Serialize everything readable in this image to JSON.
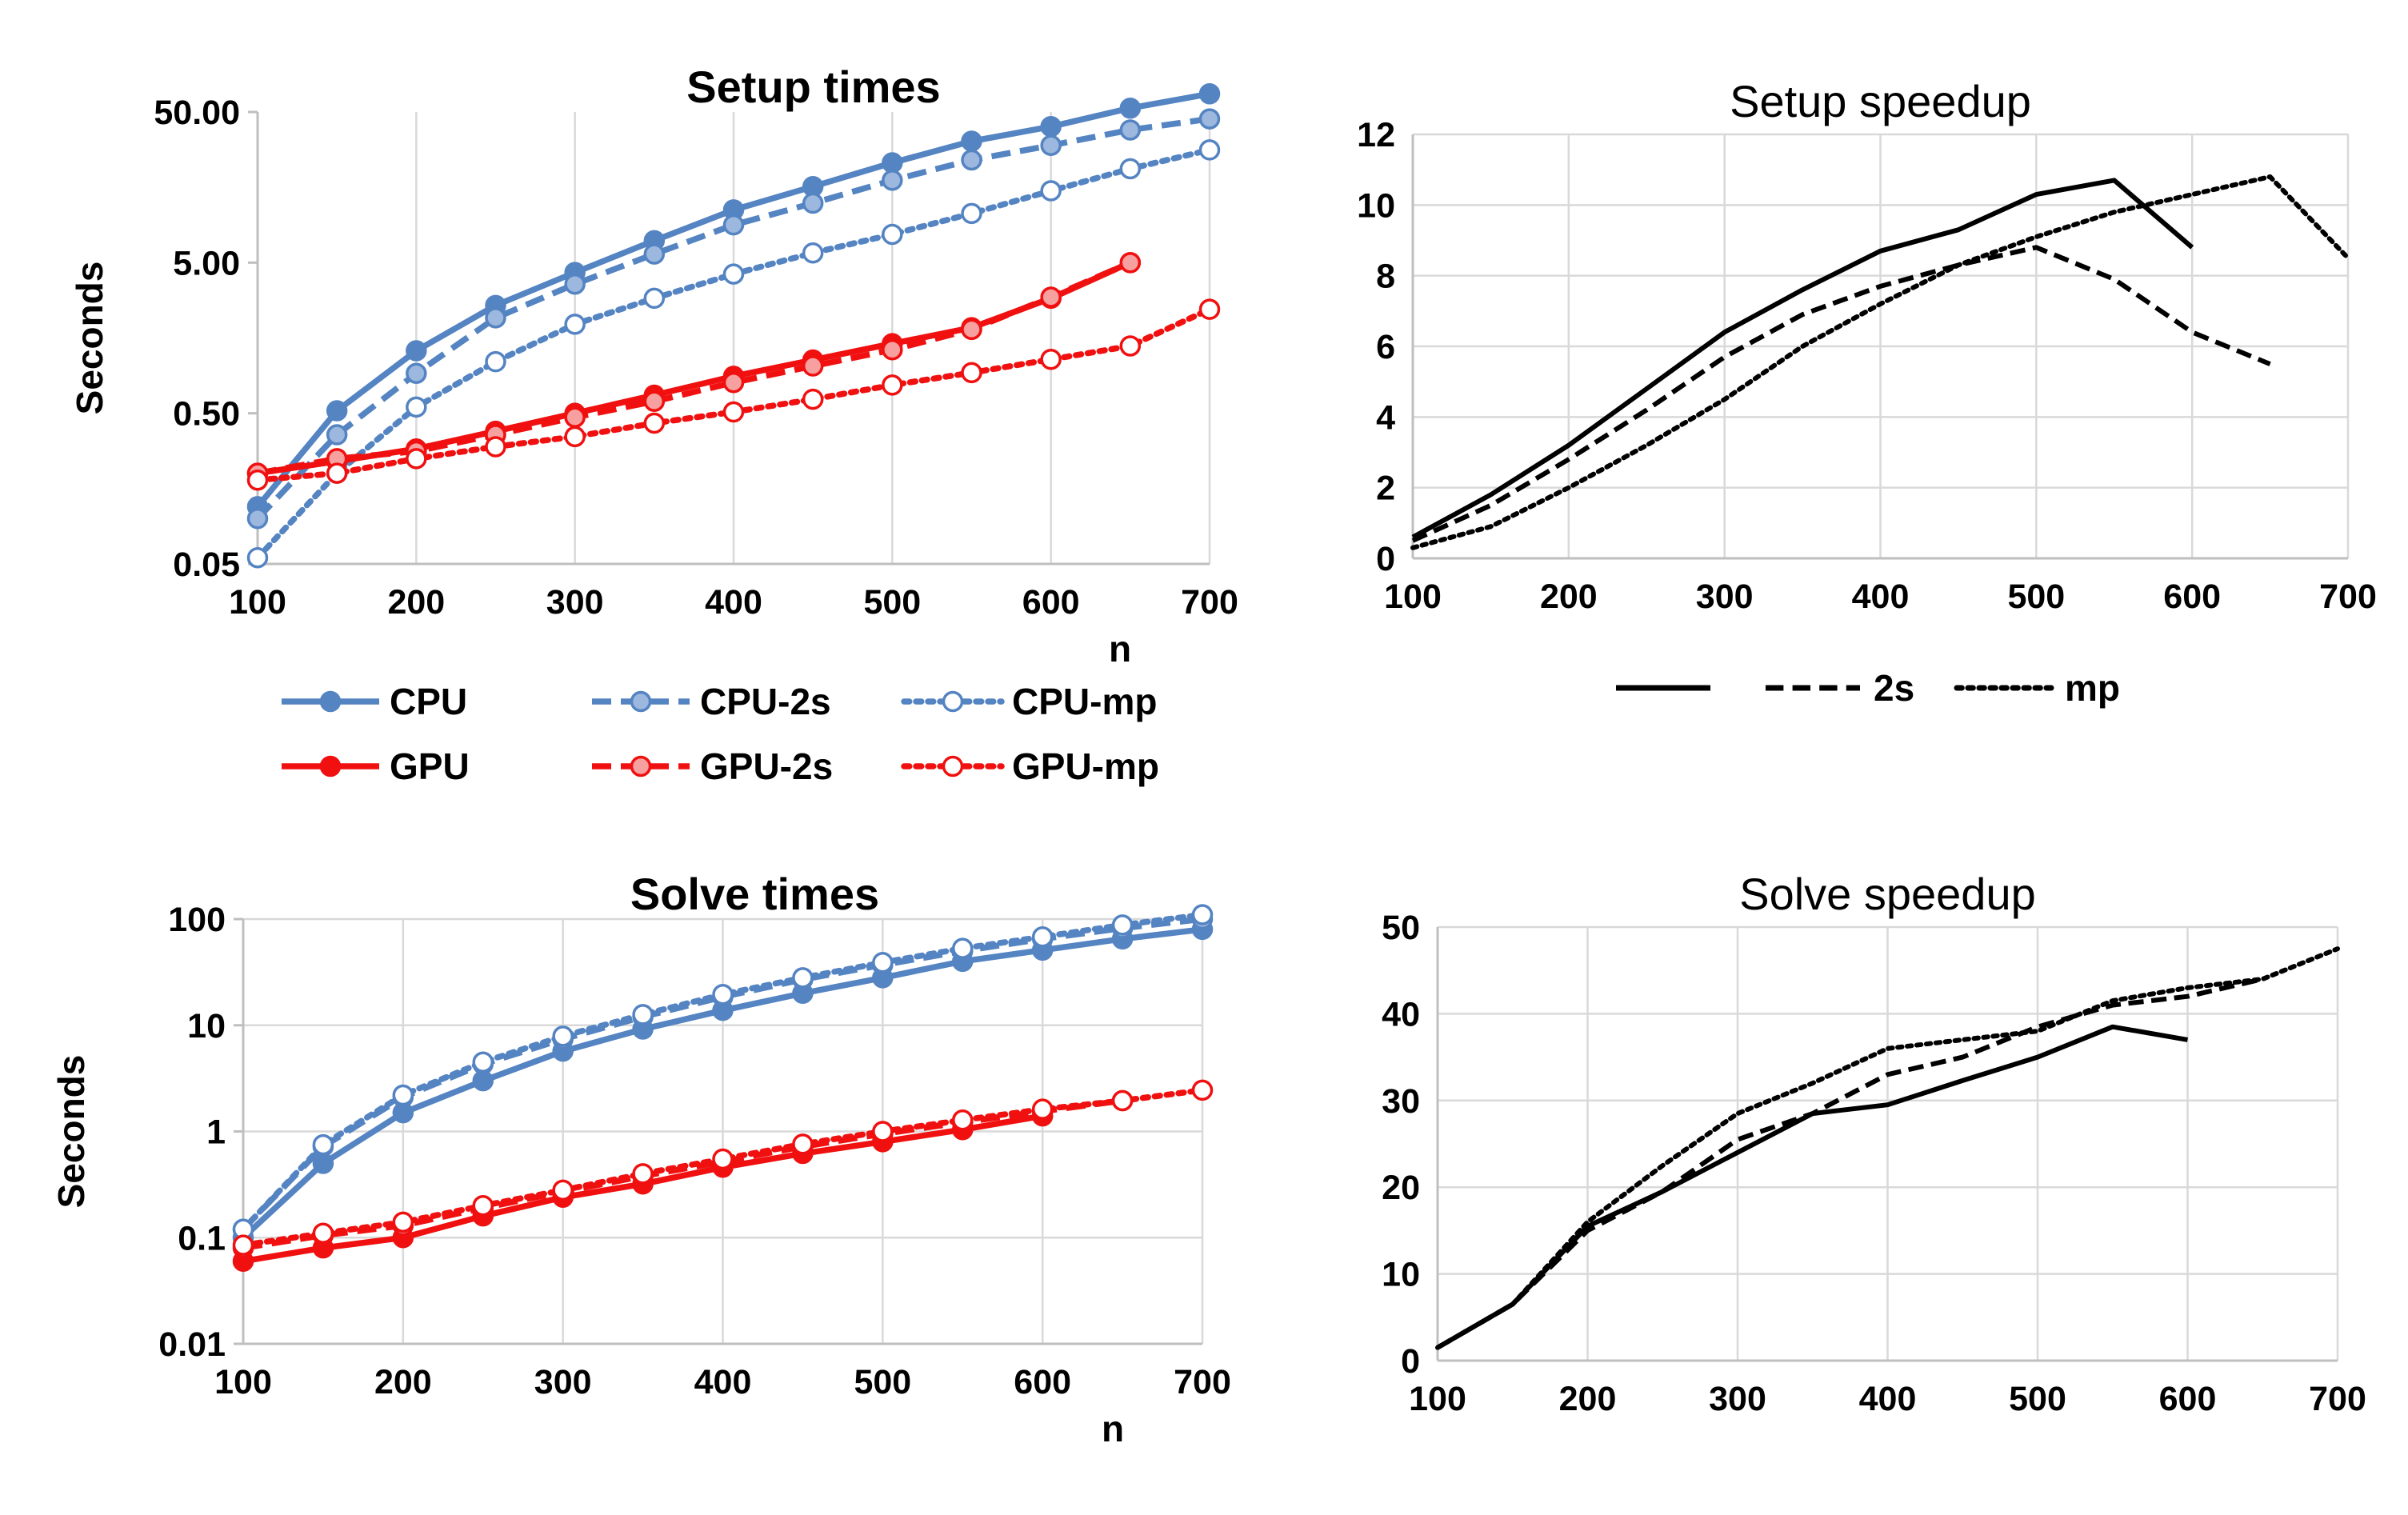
{
  "chart_data": [
    {
      "type": "line",
      "title": "Setup times",
      "xlabel": "n",
      "ylabel": "Seconds",
      "yscale": "log",
      "ylim": [
        0.05,
        50
      ],
      "xlim": [
        100,
        700
      ],
      "yticks": [
        "0.05",
        "0.50",
        "5.00",
        "50.00"
      ],
      "xticks": [
        "100",
        "200",
        "300",
        "400",
        "500",
        "600",
        "700"
      ],
      "grid": "vertical",
      "legend_position": "bottom",
      "series": [
        {
          "name": "CPU",
          "color": "#5584c2",
          "style": "solid",
          "marker": "filled",
          "x": [
            100,
            150,
            200,
            250,
            300,
            350,
            400,
            450,
            500,
            550,
            600,
            650,
            700
          ],
          "values": [
            0.12,
            0.52,
            1.3,
            2.6,
            4.3,
            7.0,
            11.2,
            16,
            23,
            32,
            40,
            53,
            66
          ]
        },
        {
          "name": "CPU-2s",
          "color": "#5584c2",
          "style": "dashed",
          "marker": "light",
          "x": [
            100,
            150,
            200,
            250,
            300,
            350,
            400,
            450,
            500,
            550,
            600,
            650,
            700
          ],
          "values": [
            0.1,
            0.36,
            0.92,
            2.15,
            3.6,
            5.7,
            8.9,
            12.4,
            17.6,
            24,
            30,
            38,
            45
          ]
        },
        {
          "name": "CPU-mp",
          "color": "#5584c2",
          "style": "dotted",
          "marker": "open",
          "x": [
            100,
            150,
            200,
            250,
            300,
            350,
            400,
            450,
            500,
            550,
            600,
            650,
            700
          ],
          "values": [
            0.055,
            0.2,
            0.55,
            1.1,
            1.95,
            2.9,
            4.2,
            5.8,
            7.7,
            10.6,
            15,
            21,
            28
          ]
        },
        {
          "name": "GPU",
          "color": "#f01010",
          "style": "solid",
          "marker": "filled",
          "x": [
            100,
            150,
            200,
            250,
            300,
            350,
            400,
            450,
            500,
            550,
            600,
            650
          ],
          "values": [
            0.2,
            0.24,
            0.29,
            0.38,
            0.5,
            0.66,
            0.88,
            1.13,
            1.45,
            1.85,
            2.9,
            5.0
          ]
        },
        {
          "name": "GPU-2s",
          "color": "#f01010",
          "style": "dashed",
          "marker": "light",
          "x": [
            100,
            150,
            200,
            250,
            300,
            350,
            400,
            450,
            500,
            550,
            600,
            650
          ],
          "values": [
            0.2,
            0.25,
            0.28,
            0.36,
            0.47,
            0.6,
            0.8,
            1.03,
            1.32,
            1.8,
            2.95,
            5.0
          ]
        },
        {
          "name": "GPU-mp",
          "color": "#f01010",
          "style": "dotted",
          "marker": "open",
          "x": [
            100,
            150,
            200,
            250,
            300,
            350,
            400,
            450,
            500,
            550,
            600,
            650,
            700
          ],
          "values": [
            0.18,
            0.2,
            0.25,
            0.3,
            0.35,
            0.43,
            0.51,
            0.62,
            0.77,
            0.93,
            1.14,
            1.4,
            2.45
          ]
        }
      ]
    },
    {
      "type": "line",
      "title": "Setup speedup",
      "xlabel": "",
      "ylabel": "",
      "ylim": [
        0,
        12
      ],
      "xlim": [
        100,
        700
      ],
      "yticks": [
        "0",
        "2",
        "4",
        "6",
        "8",
        "10",
        "12"
      ],
      "xticks": [
        "100",
        "200",
        "300",
        "400",
        "500",
        "600",
        "700"
      ],
      "grid": "both",
      "legend_position": "bottom",
      "series": [
        {
          "name": "",
          "color": "#000000",
          "style": "solid",
          "x": [
            100,
            150,
            200,
            250,
            300,
            350,
            400,
            450,
            500,
            550,
            600
          ],
          "values": [
            0.6,
            1.8,
            3.2,
            4.8,
            6.4,
            7.6,
            8.7,
            9.3,
            10.3,
            10.7,
            8.8
          ]
        },
        {
          "name": "2s",
          "color": "#000000",
          "style": "dashed",
          "x": [
            100,
            150,
            200,
            250,
            300,
            350,
            400,
            450,
            500,
            550,
            600,
            650
          ],
          "values": [
            0.5,
            1.5,
            2.8,
            4.2,
            5.7,
            6.9,
            7.7,
            8.3,
            8.8,
            7.9,
            6.4,
            5.5
          ]
        },
        {
          "name": "mp",
          "color": "#000000",
          "style": "dotted",
          "x": [
            100,
            150,
            200,
            250,
            300,
            350,
            400,
            450,
            500,
            550,
            600,
            650,
            700
          ],
          "values": [
            0.3,
            0.9,
            2.0,
            3.2,
            4.5,
            6.0,
            7.2,
            8.3,
            9.1,
            9.8,
            10.3,
            10.8,
            8.5
          ]
        }
      ]
    },
    {
      "type": "line",
      "title": "Solve times",
      "xlabel": "n",
      "ylabel": "Seconds",
      "yscale": "log",
      "ylim": [
        0.01,
        100
      ],
      "xlim": [
        100,
        700
      ],
      "yticks": [
        "0.01",
        "0.1",
        "1",
        "10",
        "100"
      ],
      "xticks": [
        "100",
        "200",
        "300",
        "400",
        "500",
        "600",
        "700"
      ],
      "grid": "both",
      "series": [
        {
          "name": "CPU",
          "color": "#5584c2",
          "style": "solid",
          "marker": "filled",
          "x": [
            100,
            150,
            200,
            250,
            300,
            350,
            400,
            450,
            500,
            550,
            600,
            650,
            700
          ],
          "values": [
            0.1,
            0.5,
            1.5,
            3.0,
            5.7,
            9.2,
            13.8,
            20,
            28,
            40,
            51,
            65,
            80
          ]
        },
        {
          "name": "CPU-2s",
          "color": "#5584c2",
          "style": "dashed",
          "marker": "light",
          "x": [
            100,
            150,
            200,
            250,
            300,
            350,
            400,
            450,
            500,
            550,
            600,
            650,
            700
          ],
          "values": [
            0.12,
            0.72,
            2.1,
            4.3,
            7.4,
            12.0,
            18.5,
            27,
            37,
            50,
            65,
            82,
            100
          ]
        },
        {
          "name": "CPU-mp",
          "color": "#5584c2",
          "style": "dotted",
          "marker": "open",
          "x": [
            100,
            150,
            200,
            250,
            300,
            350,
            400,
            450,
            500,
            550,
            600,
            650,
            700
          ],
          "values": [
            0.12,
            0.75,
            2.2,
            4.5,
            7.9,
            12.6,
            19.5,
            28,
            39,
            53,
            68,
            88,
            110
          ]
        },
        {
          "name": "GPU",
          "color": "#f01010",
          "style": "solid",
          "marker": "filled",
          "x": [
            100,
            150,
            200,
            250,
            300,
            350,
            400,
            450,
            500,
            550,
            600
          ],
          "values": [
            0.06,
            0.08,
            0.1,
            0.16,
            0.24,
            0.32,
            0.46,
            0.62,
            0.8,
            1.04,
            1.4
          ]
        },
        {
          "name": "GPU-2s",
          "color": "#f01010",
          "style": "dashed",
          "marker": "light",
          "x": [
            100,
            150,
            200,
            250,
            300,
            350,
            400,
            450,
            500,
            550,
            600,
            650
          ],
          "values": [
            0.08,
            0.105,
            0.13,
            0.19,
            0.27,
            0.38,
            0.52,
            0.72,
            0.95,
            1.22,
            1.55,
            1.95
          ]
        },
        {
          "name": "GPU-mp",
          "color": "#f01010",
          "style": "dotted",
          "marker": "open",
          "x": [
            100,
            150,
            200,
            250,
            300,
            350,
            400,
            450,
            500,
            550,
            600,
            650,
            700
          ],
          "values": [
            0.085,
            0.11,
            0.14,
            0.2,
            0.28,
            0.4,
            0.55,
            0.76,
            1.0,
            1.28,
            1.62,
            1.95,
            2.45
          ]
        }
      ]
    },
    {
      "type": "line",
      "title": "Solve speedup",
      "xlabel": "",
      "ylabel": "",
      "ylim": [
        0,
        50
      ],
      "xlim": [
        100,
        700
      ],
      "yticks": [
        "0",
        "10",
        "20",
        "30",
        "40",
        "50"
      ],
      "xticks": [
        "100",
        "200",
        "300",
        "400",
        "500",
        "600",
        "700"
      ],
      "grid": "both",
      "series": [
        {
          "name": "",
          "color": "#000000",
          "style": "solid",
          "x": [
            100,
            150,
            200,
            250,
            300,
            350,
            400,
            450,
            500,
            550,
            600
          ],
          "values": [
            1.5,
            6.5,
            15.5,
            19.5,
            24,
            28.5,
            29.5,
            32.3,
            35,
            38.5,
            37
          ]
        },
        {
          "name": "2s",
          "color": "#000000",
          "style": "dashed",
          "x": [
            100,
            150,
            200,
            250,
            300,
            350,
            400,
            450,
            500,
            550,
            600,
            650
          ],
          "values": [
            1.5,
            6.5,
            15,
            19.5,
            25.5,
            28.5,
            33,
            35,
            38.5,
            41,
            42,
            44
          ]
        },
        {
          "name": "mp",
          "color": "#000000",
          "style": "dotted",
          "x": [
            100,
            150,
            200,
            250,
            300,
            350,
            400,
            450,
            500,
            550,
            600,
            650,
            700
          ],
          "values": [
            1.5,
            6.5,
            16,
            22.5,
            28.5,
            32,
            36,
            37,
            38,
            41.5,
            43,
            44,
            47.5
          ]
        }
      ]
    }
  ]
}
